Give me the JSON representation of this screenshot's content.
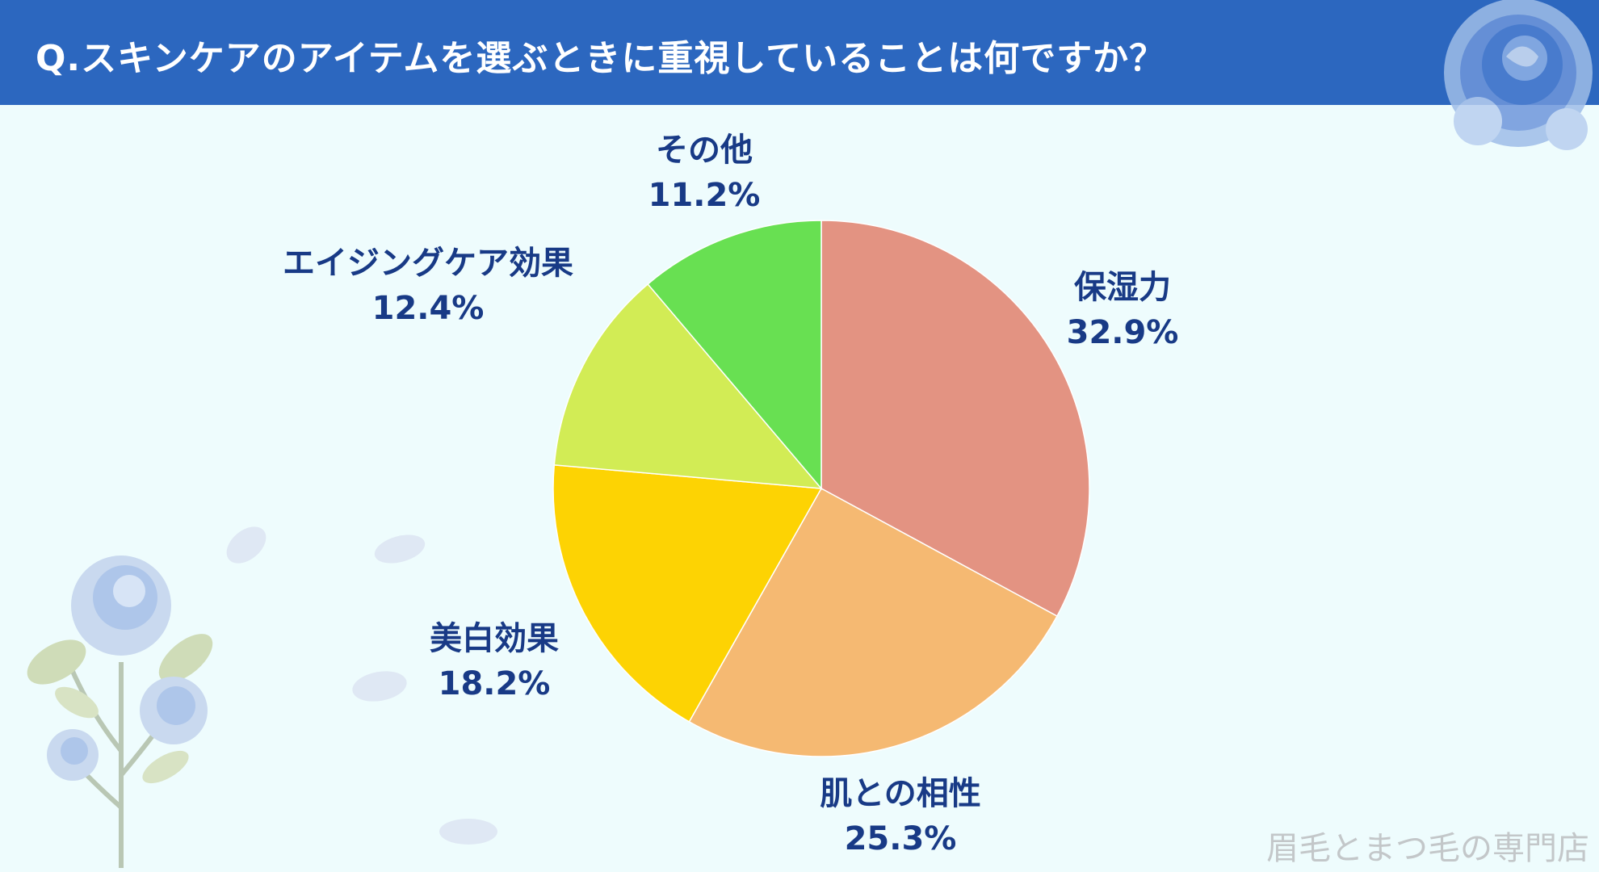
{
  "header": {
    "title": "Q.スキンケアのアイテムを選ぶときに重視していることは何ですか？"
  },
  "chart_data": {
    "type": "pie",
    "title": "",
    "start_angle_deg": 0,
    "direction": "clockwise",
    "slices": [
      {
        "label": "保湿力",
        "value": 32.9,
        "value_label": "32.9%",
        "color": "#e39382"
      },
      {
        "label": "肌との相性",
        "value": 25.3,
        "value_label": "25.3%",
        "color": "#f5b972"
      },
      {
        "label": "美白効果",
        "value": 18.2,
        "value_label": "18.2%",
        "color": "#fdd303"
      },
      {
        "label": "エイジングケア効果",
        "value": 12.4,
        "value_label": "12.4%",
        "color": "#d2ec55"
      },
      {
        "label": "その他",
        "value": 11.2,
        "value_label": "11.2%",
        "color": "#68e052"
      }
    ]
  },
  "watermark": "眉毛とまつ毛の専門店",
  "colors": {
    "header_bg": "#2c67bf",
    "page_bg": "#eefcfd",
    "label_text": "#183a86"
  },
  "decorations": {
    "top_right": "blue-rose-icon",
    "bottom_left": "blue-rose-bouquet-icon"
  }
}
